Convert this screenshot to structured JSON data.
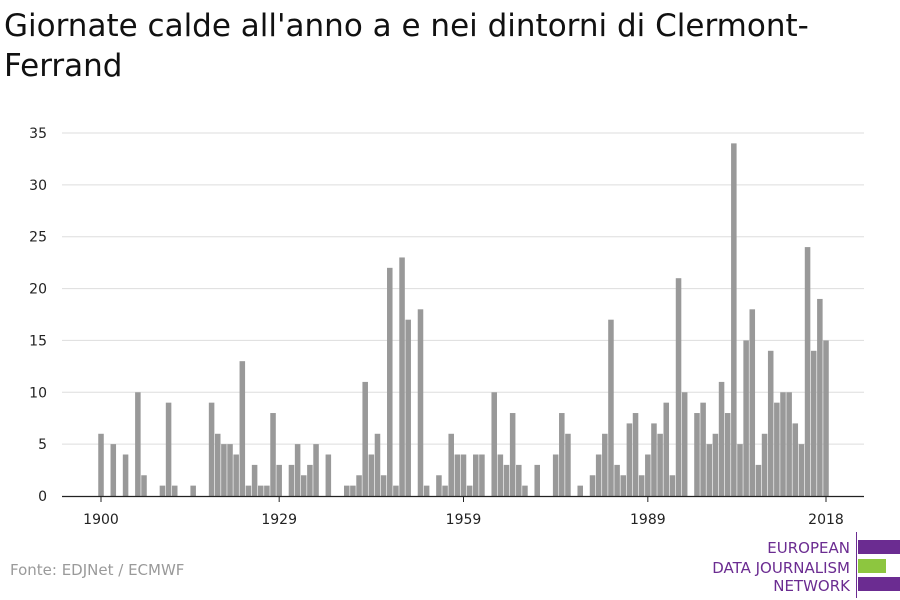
{
  "chart_data": {
    "type": "bar",
    "title": "Giornate calde all'anno a e nei dintorni di Clermont-Ferrand",
    "xlabel": "",
    "ylabel": "",
    "x_start": 1900,
    "x_end": 2018,
    "x_ticks": [
      1900,
      1929,
      1959,
      1989,
      2018
    ],
    "y_ticks": [
      0,
      5,
      10,
      15,
      20,
      25,
      30,
      35
    ],
    "ylim": [
      0,
      35
    ],
    "grid": true,
    "bar_color": "#999999",
    "series": [
      {
        "x": [
          1900,
          1901,
          1902,
          1903,
          1904,
          1905,
          1906,
          1907,
          1908,
          1909,
          1910,
          1911,
          1912,
          1913,
          1914,
          1915,
          1916,
          1917,
          1918,
          1919,
          1920,
          1921,
          1922,
          1923,
          1924,
          1925,
          1926,
          1927,
          1928,
          1929,
          1930,
          1931,
          1932,
          1933,
          1934,
          1935,
          1936,
          1937,
          1938,
          1939,
          1940,
          1941,
          1942,
          1943,
          1944,
          1945,
          1946,
          1947,
          1948,
          1949,
          1950,
          1951,
          1952,
          1953,
          1954,
          1955,
          1956,
          1957,
          1958,
          1959,
          1960,
          1961,
          1962,
          1963,
          1964,
          1965,
          1966,
          1967,
          1968,
          1969,
          1970,
          1971,
          1972,
          1973,
          1974,
          1975,
          1976,
          1977,
          1978,
          1979,
          1980,
          1981,
          1982,
          1983,
          1984,
          1985,
          1986,
          1987,
          1988,
          1989,
          1990,
          1991,
          1992,
          1993,
          1994,
          1995,
          1996,
          1997,
          1998,
          1999,
          2000,
          2001,
          2002,
          2003,
          2004,
          2005,
          2006,
          2007,
          2008,
          2009,
          2010,
          2011,
          2012,
          2013,
          2014,
          2015,
          2016,
          2017,
          2018
        ],
        "values": [
          6,
          0,
          5,
          0,
          4,
          0,
          10,
          2,
          0,
          0,
          1,
          9,
          1,
          0,
          0,
          1,
          0,
          0,
          9,
          6,
          5,
          5,
          4,
          13,
          1,
          3,
          1,
          1,
          8,
          3,
          0,
          3,
          5,
          2,
          3,
          5,
          0,
          4,
          0,
          0,
          1,
          1,
          2,
          11,
          4,
          6,
          2,
          22,
          1,
          23,
          17,
          0,
          18,
          1,
          0,
          2,
          1,
          6,
          4,
          4,
          1,
          4,
          4,
          0,
          10,
          4,
          3,
          8,
          3,
          1,
          0,
          3,
          0,
          0,
          4,
          8,
          6,
          0,
          1,
          0,
          2,
          4,
          6,
          17,
          3,
          2,
          7,
          8,
          2,
          4,
          7,
          6,
          9,
          2,
          21,
          10,
          0,
          8,
          9,
          5,
          6,
          11,
          8,
          34,
          5,
          15,
          18,
          3,
          6,
          14,
          9,
          10,
          10,
          7,
          5,
          24,
          14,
          19,
          15
        ]
      }
    ]
  },
  "source": "Fonte: EDJNet / ECMWF",
  "logo": {
    "lines": [
      "EUROPEAN",
      "DATA JOURNALISM",
      "NETWORK"
    ],
    "colors": [
      "#6b2c91",
      "#8dc63f",
      "#6b2c91"
    ]
  }
}
